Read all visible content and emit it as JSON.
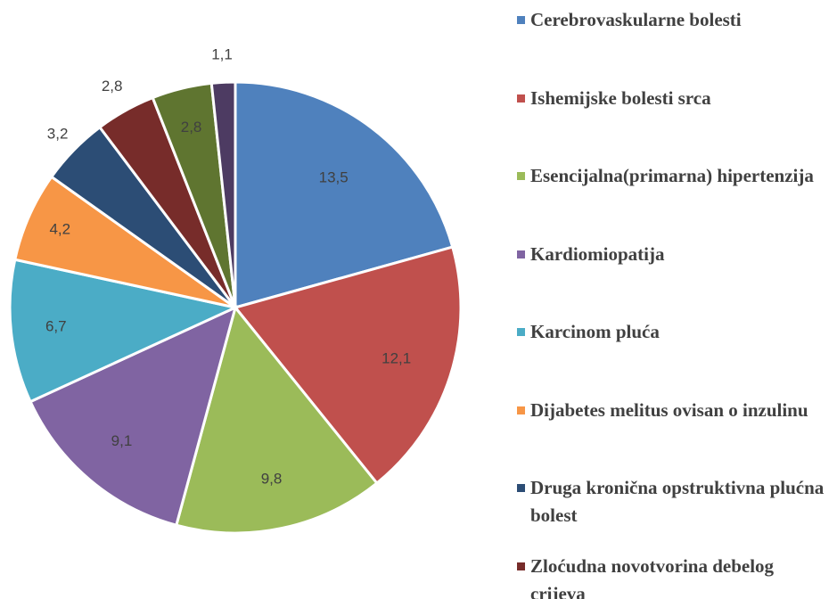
{
  "chart_data": {
    "type": "pie",
    "categories": [
      "Cerebrovaskularne bolesti",
      "Ishemijske bolesti srca",
      "Esencijalna(primarna) hipertenzija",
      "Kardiomiopatija",
      "Karcinom pluća",
      "Dijabetes melitus ovisan o inzulinu",
      "Druga kronična opstruktivna plućna bolest",
      "Zloćudna novotvorina debelog crijeva",
      null,
      null
    ],
    "values": [
      13.5,
      12.1,
      9.8,
      9.1,
      6.7,
      4.2,
      3.2,
      2.8,
      2.8,
      1.1
    ],
    "value_labels": [
      "13,5",
      "12,1",
      "9,8",
      "9,1",
      "6,7",
      "4,2",
      "3,2",
      "2,8",
      "2,8",
      "1,1"
    ],
    "colors": [
      "#4f81bd",
      "#c0504d",
      "#9bbb59",
      "#8064a2",
      "#4bacc6",
      "#f79646",
      "#2c4d75",
      "#772c2a",
      "#5f7530",
      "#4d3b62"
    ],
    "legend": "right"
  }
}
